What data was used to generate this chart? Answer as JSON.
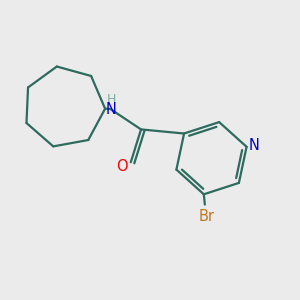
{
  "background_color": "#ebebeb",
  "bond_color": "#2d6b5e",
  "bond_width": 1.6,
  "text_color_N": "#0000cc",
  "text_color_O": "#ff0000",
  "text_color_Br": "#c07820",
  "text_color_H": "#7aada0",
  "font_size_atoms": 10.5,
  "fig_width": 3.0,
  "fig_height": 3.0,
  "xlim": [
    0.05,
    2.95
  ],
  "ylim": [
    0.4,
    2.6
  ]
}
